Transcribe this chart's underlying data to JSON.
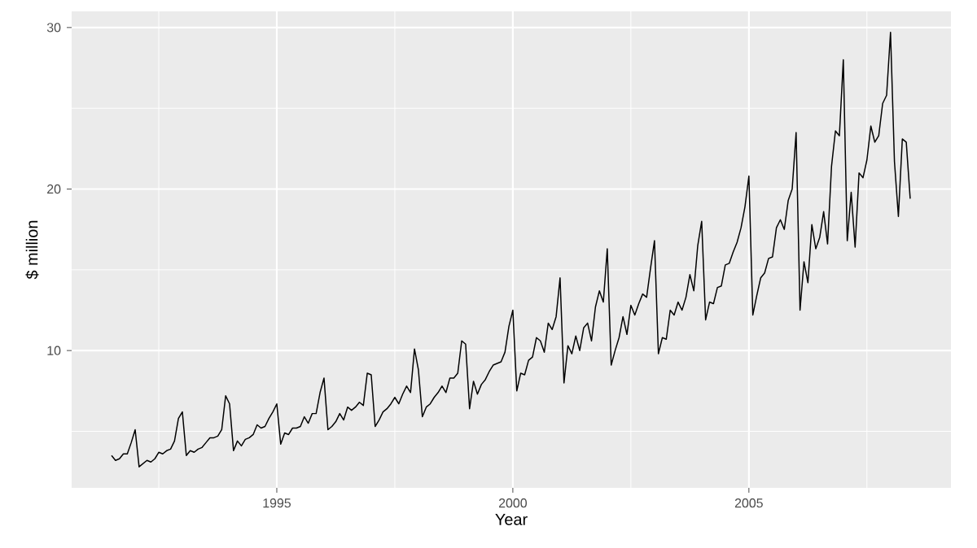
{
  "chart_data": {
    "type": "line",
    "xlabel": "Year",
    "ylabel": "$ million",
    "x": [
      "1991-07",
      "1991-08",
      "1991-09",
      "1991-10",
      "1991-11",
      "1991-12",
      "1992-01",
      "1992-02",
      "1992-03",
      "1992-04",
      "1992-05",
      "1992-06",
      "1992-07",
      "1992-08",
      "1992-09",
      "1992-10",
      "1992-11",
      "1992-12",
      "1993-01",
      "1993-02",
      "1993-03",
      "1993-04",
      "1993-05",
      "1993-06",
      "1993-07",
      "1993-08",
      "1993-09",
      "1993-10",
      "1993-11",
      "1993-12",
      "1994-01",
      "1994-02",
      "1994-03",
      "1994-04",
      "1994-05",
      "1994-06",
      "1994-07",
      "1994-08",
      "1994-09",
      "1994-10",
      "1994-11",
      "1994-12",
      "1995-01",
      "1995-02",
      "1995-03",
      "1995-04",
      "1995-05",
      "1995-06",
      "1995-07",
      "1995-08",
      "1995-09",
      "1995-10",
      "1995-11",
      "1995-12",
      "1996-01",
      "1996-02",
      "1996-03",
      "1996-04",
      "1996-05",
      "1996-06",
      "1996-07",
      "1996-08",
      "1996-09",
      "1996-10",
      "1996-11",
      "1996-12",
      "1997-01",
      "1997-02",
      "1997-03",
      "1997-04",
      "1997-05",
      "1997-06",
      "1997-07",
      "1997-08",
      "1997-09",
      "1997-10",
      "1997-11",
      "1997-12",
      "1998-01",
      "1998-02",
      "1998-03",
      "1998-04",
      "1998-05",
      "1998-06",
      "1998-07",
      "1998-08",
      "1998-09",
      "1998-10",
      "1998-11",
      "1998-12",
      "1999-01",
      "1999-02",
      "1999-03",
      "1999-04",
      "1999-05",
      "1999-06",
      "1999-07",
      "1999-08",
      "1999-09",
      "1999-10",
      "1999-11",
      "1999-12",
      "2000-01",
      "2000-02",
      "2000-03",
      "2000-04",
      "2000-05",
      "2000-06",
      "2000-07",
      "2000-08",
      "2000-09",
      "2000-10",
      "2000-11",
      "2000-12",
      "2001-01",
      "2001-02",
      "2001-03",
      "2001-04",
      "2001-05",
      "2001-06",
      "2001-07",
      "2001-08",
      "2001-09",
      "2001-10",
      "2001-11",
      "2001-12",
      "2002-01",
      "2002-02",
      "2002-03",
      "2002-04",
      "2002-05",
      "2002-06",
      "2002-07",
      "2002-08",
      "2002-09",
      "2002-10",
      "2002-11",
      "2002-12",
      "2003-01",
      "2003-02",
      "2003-03",
      "2003-04",
      "2003-05",
      "2003-06",
      "2003-07",
      "2003-08",
      "2003-09",
      "2003-10",
      "2003-11",
      "2003-12",
      "2004-01",
      "2004-02",
      "2004-03",
      "2004-04",
      "2004-05",
      "2004-06",
      "2004-07",
      "2004-08",
      "2004-09",
      "2004-10",
      "2004-11",
      "2004-12",
      "2005-01",
      "2005-02",
      "2005-03",
      "2005-04",
      "2005-05",
      "2005-06",
      "2005-07",
      "2005-08",
      "2005-09",
      "2005-10",
      "2005-11",
      "2005-12",
      "2006-01",
      "2006-02",
      "2006-03",
      "2006-04",
      "2006-05",
      "2006-06",
      "2006-07",
      "2006-08",
      "2006-09",
      "2006-10",
      "2006-11",
      "2006-12",
      "2007-01",
      "2007-02",
      "2007-03",
      "2007-04",
      "2007-05",
      "2007-06",
      "2007-07",
      "2007-08",
      "2007-09",
      "2007-10",
      "2007-11",
      "2007-12",
      "2008-01",
      "2008-02",
      "2008-03",
      "2008-04",
      "2008-05",
      "2008-06"
    ],
    "series": [
      {
        "color": "#000000",
        "values": [
          3.5,
          3.2,
          3.3,
          3.6,
          3.6,
          4.3,
          5.1,
          2.8,
          3.0,
          3.2,
          3.1,
          3.3,
          3.7,
          3.6,
          3.8,
          3.9,
          4.4,
          5.8,
          6.2,
          3.5,
          3.8,
          3.7,
          3.9,
          4.0,
          4.3,
          4.6,
          4.6,
          4.7,
          5.1,
          7.2,
          6.7,
          3.8,
          4.4,
          4.1,
          4.5,
          4.6,
          4.8,
          5.4,
          5.2,
          5.3,
          5.8,
          6.2,
          6.7,
          4.2,
          4.9,
          4.8,
          5.2,
          5.2,
          5.3,
          5.9,
          5.5,
          6.1,
          6.1,
          7.4,
          8.3,
          5.1,
          5.3,
          5.6,
          6.1,
          5.7,
          6.5,
          6.3,
          6.5,
          6.8,
          6.6,
          8.6,
          8.5,
          5.3,
          5.7,
          6.2,
          6.4,
          6.7,
          7.1,
          6.7,
          7.3,
          7.8,
          7.4,
          10.1,
          8.8,
          5.9,
          6.5,
          6.7,
          7.1,
          7.4,
          7.8,
          7.4,
          8.3,
          8.3,
          8.6,
          10.6,
          10.4,
          6.4,
          8.1,
          7.3,
          7.9,
          8.2,
          8.7,
          9.1,
          9.2,
          9.3,
          9.9,
          11.5,
          12.5,
          7.5,
          8.6,
          8.5,
          9.4,
          9.6,
          10.8,
          10.6,
          9.9,
          11.7,
          11.3,
          12.1,
          14.5,
          8.0,
          10.3,
          9.8,
          10.9,
          10.0,
          11.4,
          11.7,
          10.6,
          12.7,
          13.7,
          13.0,
          16.3,
          9.1,
          10.0,
          10.8,
          12.1,
          11.0,
          12.8,
          12.2,
          12.9,
          13.5,
          13.3,
          15.1,
          16.8,
          9.8,
          10.8,
          10.7,
          12.5,
          12.2,
          13.0,
          12.5,
          13.3,
          14.7,
          13.7,
          16.5,
          18.0,
          11.9,
          13.0,
          12.9,
          13.9,
          14.0,
          15.3,
          15.4,
          16.1,
          16.7,
          17.6,
          18.9,
          20.8,
          12.2,
          13.4,
          14.5,
          14.8,
          15.7,
          15.8,
          17.6,
          18.1,
          17.5,
          19.3,
          20.0,
          23.5,
          12.5,
          15.5,
          14.2,
          17.8,
          16.3,
          17.0,
          18.6,
          16.6,
          21.4,
          23.6,
          23.3,
          28.0,
          16.8,
          19.8,
          16.4,
          21.0,
          20.7,
          21.8,
          23.9,
          22.9,
          23.3,
          25.3,
          25.8,
          29.7,
          21.7,
          18.3,
          23.1,
          22.9,
          19.4
        ]
      }
    ],
    "xlim": [
      "1990-08-27",
      "2009-04-12"
    ],
    "xticks": [
      "1995",
      "2000",
      "2005"
    ],
    "ylim": [
      1.5,
      31.0
    ],
    "yticks": [
      10,
      20,
      30
    ],
    "grid": true,
    "line_style": "solid",
    "marker": "none"
  }
}
